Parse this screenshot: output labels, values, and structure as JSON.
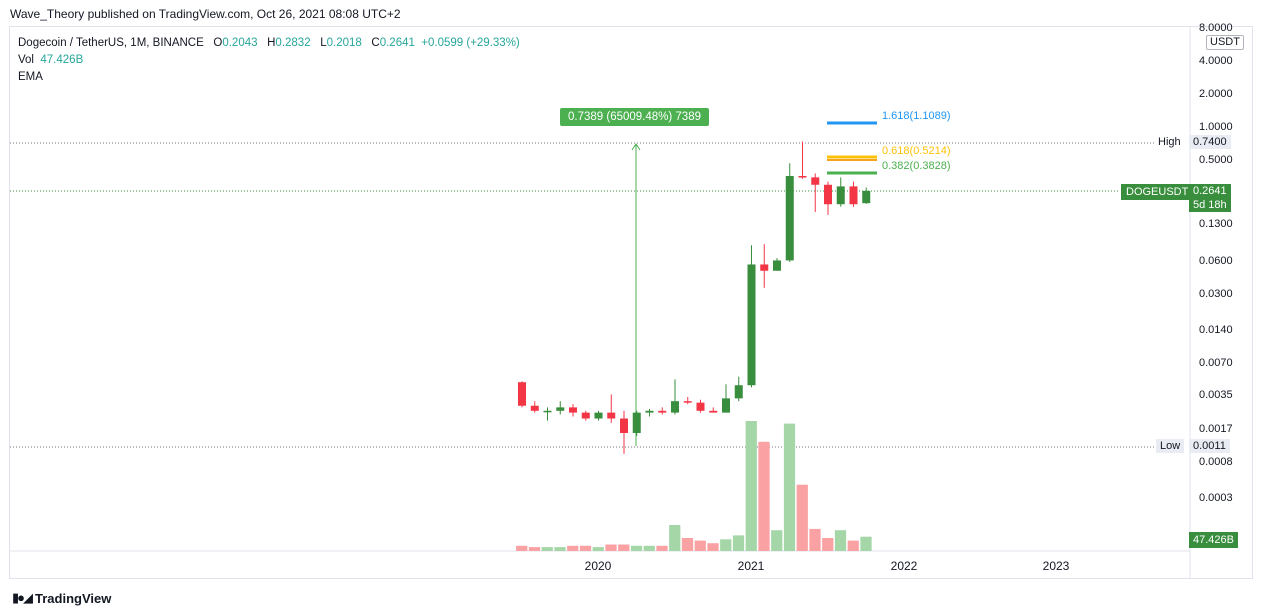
{
  "publisher": "Wave_Theory published on TradingView.com, Oct 26, 2021 08:08 UTC+2",
  "legend": {
    "symbol": "Dogecoin / TetherUS, 1M, BINANCE",
    "o_key": "O",
    "o": "0.2043",
    "h_key": "H",
    "h": "0.2832",
    "l_key": "L",
    "l": "0.2018",
    "c_key": "C",
    "c": "0.2641",
    "change": "+0.0599 (+29.33%)",
    "vol_key": "Vol",
    "vol": "47.426B",
    "ema": "EMA"
  },
  "unit": "USDT",
  "y_ticks": [
    "8.0000",
    "4.0000",
    "2.0000",
    "1.0000",
    "0.5000",
    "0.2641",
    "0.1300",
    "0.0600",
    "0.0300",
    "0.0140",
    "0.0070",
    "0.0035",
    "0.0017",
    "0.0008",
    "0.0003"
  ],
  "x_ticks": [
    "2020",
    "2021",
    "2022",
    "2023"
  ],
  "tags": {
    "high_label": "High",
    "high_value": "0.7400",
    "low_label": "Low",
    "low_value": "0.0011",
    "symbol_label": "DOGEUSDT",
    "price": "0.2641",
    "countdown": "5d 18h",
    "volume": "47.426B"
  },
  "measure_label": "0.7389 (65009.48%) 7389",
  "fib_levels": [
    {
      "text": "1.618(1.1089)",
      "color": "#2196f3"
    },
    {
      "text": "0.618(0.5214)",
      "color": "#ffc107"
    },
    {
      "text": "0.382(0.3828)",
      "color": "#4caf50"
    }
  ],
  "colors": {
    "up": "#388e3c",
    "down": "#f23645",
    "vol_up": "#a5d6a7",
    "vol_down": "#faa1a4"
  },
  "logo": "TradingView",
  "chart_data": {
    "type": "candlestick",
    "title": "Dogecoin / TetherUS, 1M, BINANCE",
    "y_scale": "log",
    "candles": [
      {
        "o": 0.0049,
        "h": 0.005,
        "l": 0.0029,
        "c": 0.003
      },
      {
        "o": 0.003,
        "h": 0.0033,
        "l": 0.0026,
        "c": 0.0027
      },
      {
        "o": 0.0027,
        "h": 0.0029,
        "l": 0.0022,
        "c": 0.0027
      },
      {
        "o": 0.0027,
        "h": 0.0033,
        "l": 0.0025,
        "c": 0.0029
      },
      {
        "o": 0.0029,
        "h": 0.0031,
        "l": 0.0024,
        "c": 0.0026
      },
      {
        "o": 0.0026,
        "h": 0.0027,
        "l": 0.0022,
        "c": 0.0023
      },
      {
        "o": 0.0023,
        "h": 0.0027,
        "l": 0.0022,
        "c": 0.0026
      },
      {
        "o": 0.0026,
        "h": 0.0038,
        "l": 0.0021,
        "c": 0.0023
      },
      {
        "o": 0.0023,
        "h": 0.0027,
        "l": 0.0011,
        "c": 0.0017
      },
      {
        "o": 0.0017,
        "h": 0.0027,
        "l": 0.0016,
        "c": 0.0026
      },
      {
        "o": 0.0026,
        "h": 0.0028,
        "l": 0.0024,
        "c": 0.0027
      },
      {
        "o": 0.0027,
        "h": 0.0029,
        "l": 0.0025,
        "c": 0.0026
      },
      {
        "o": 0.0026,
        "h": 0.0052,
        "l": 0.0025,
        "c": 0.0033
      },
      {
        "o": 0.0033,
        "h": 0.0036,
        "l": 0.0031,
        "c": 0.0032
      },
      {
        "o": 0.0032,
        "h": 0.0034,
        "l": 0.0026,
        "c": 0.0027
      },
      {
        "o": 0.0027,
        "h": 0.0029,
        "l": 0.0026,
        "c": 0.0026
      },
      {
        "o": 0.0026,
        "h": 0.0047,
        "l": 0.0026,
        "c": 0.0035
      },
      {
        "o": 0.0035,
        "h": 0.0055,
        "l": 0.0033,
        "c": 0.0046
      },
      {
        "o": 0.0046,
        "h": 0.085,
        "l": 0.0044,
        "c": 0.057
      },
      {
        "o": 0.057,
        "h": 0.087,
        "l": 0.035,
        "c": 0.05
      },
      {
        "o": 0.05,
        "h": 0.065,
        "l": 0.05,
        "c": 0.062
      },
      {
        "o": 0.062,
        "h": 0.47,
        "l": 0.06,
        "c": 0.36
      },
      {
        "o": 0.36,
        "h": 0.74,
        "l": 0.34,
        "c": 0.35
      },
      {
        "o": 0.35,
        "h": 0.38,
        "l": 0.17,
        "c": 0.3
      },
      {
        "o": 0.3,
        "h": 0.32,
        "l": 0.16,
        "c": 0.2
      },
      {
        "o": 0.2,
        "h": 0.35,
        "l": 0.19,
        "c": 0.29
      },
      {
        "o": 0.29,
        "h": 0.32,
        "l": 0.19,
        "c": 0.2
      },
      {
        "o": 0.2043,
        "h": 0.2832,
        "l": 0.2018,
        "c": 0.2641
      }
    ],
    "volume_relative": [
      0.04,
      0.03,
      0.03,
      0.03,
      0.04,
      0.04,
      0.03,
      0.05,
      0.05,
      0.04,
      0.04,
      0.04,
      0.2,
      0.1,
      0.08,
      0.06,
      0.09,
      0.12,
      1.0,
      0.84,
      0.16,
      0.98,
      0.51,
      0.17,
      0.1,
      0.16,
      0.08,
      0.11
    ]
  }
}
